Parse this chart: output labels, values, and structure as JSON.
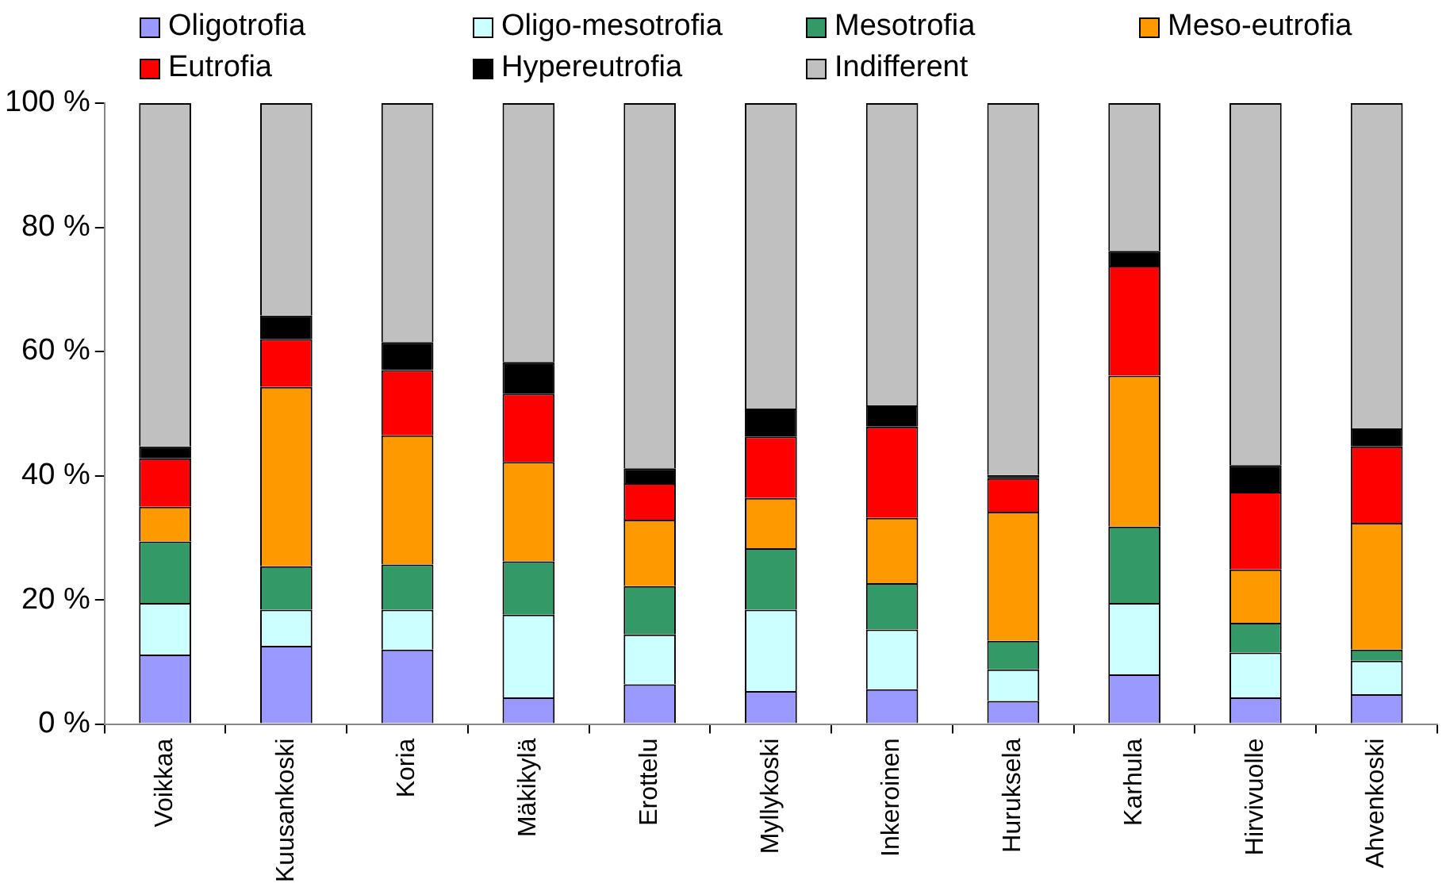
{
  "chart_data": {
    "type": "bar",
    "stacked": true,
    "legend": "top",
    "grid": false,
    "categories": [
      "Voikkaa",
      "Kuusankoski",
      "Koria",
      "Mäkikylä",
      "Erottelu",
      "Myllykoski",
      "Inkeroinen",
      "Huruksela",
      "Karhula",
      "Hirvivuolle",
      "Ahvenkoski"
    ],
    "ylim": [
      0,
      100
    ],
    "yticks": [
      {
        "value": 0,
        "label": "0 %"
      },
      {
        "value": 20,
        "label": "20 %"
      },
      {
        "value": 40,
        "label": "40 %"
      },
      {
        "value": 60,
        "label": "60 %"
      },
      {
        "value": 80,
        "label": "80 %"
      },
      {
        "value": 100,
        "label": "100 %"
      }
    ],
    "series": [
      {
        "name": "Oligotrofia",
        "color": "#9999ff",
        "values": [
          11.2,
          12.6,
          12.0,
          4.3,
          6.4,
          5.3,
          5.6,
          3.7,
          8.0,
          4.3,
          4.8
        ]
      },
      {
        "name": "Oligo-mesotrofia",
        "color": "#ccffff",
        "values": [
          8.3,
          5.8,
          6.4,
          13.3,
          8.0,
          13.1,
          9.6,
          5.1,
          11.5,
          7.2,
          5.4
        ]
      },
      {
        "name": "Mesotrofia",
        "color": "#339966",
        "values": [
          9.9,
          7.0,
          7.3,
          8.6,
          7.8,
          9.9,
          7.5,
          4.6,
          12.3,
          4.8,
          1.8
        ]
      },
      {
        "name": "Meso-eutrofia",
        "color": "#ff9900",
        "values": [
          5.6,
          28.9,
          20.8,
          16.0,
          10.7,
          8.1,
          10.5,
          20.8,
          24.3,
          8.6,
          20.4
        ]
      },
      {
        "name": "Eutrofia",
        "color": "#ff0000",
        "values": [
          7.8,
          7.7,
          10.5,
          11.0,
          5.9,
          9.9,
          14.7,
          5.4,
          17.7,
          12.5,
          12.3
        ]
      },
      {
        "name": "Hypereutrofia",
        "color": "#000000",
        "values": [
          1.9,
          3.8,
          4.5,
          5.1,
          2.4,
          4.5,
          3.4,
          0.5,
          2.4,
          4.3,
          2.9
        ]
      },
      {
        "name": "Indifferent",
        "color": "#c0c0c0",
        "values": [
          55.3,
          34.2,
          38.5,
          41.7,
          58.8,
          49.2,
          48.7,
          59.9,
          23.8,
          58.3,
          52.4
        ]
      }
    ]
  }
}
